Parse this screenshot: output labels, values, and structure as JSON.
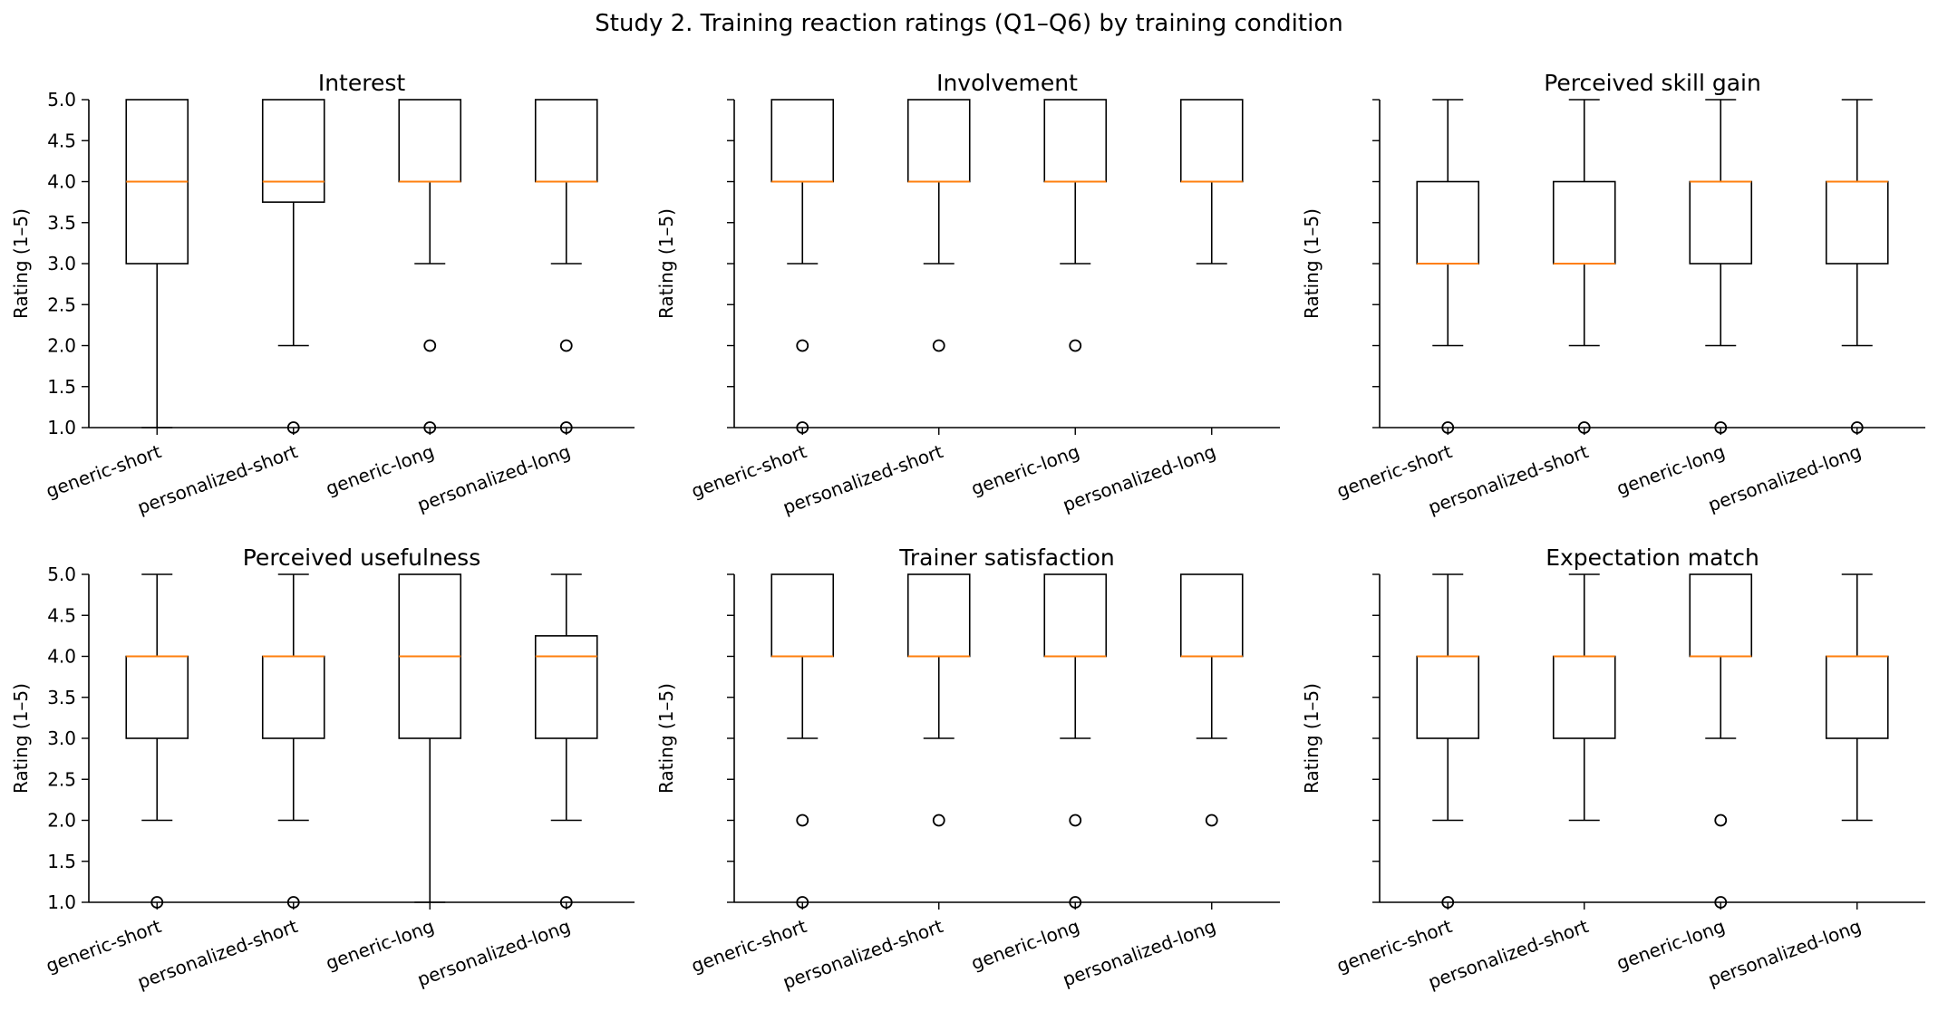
{
  "figure": {
    "title": "Study 2. Training reaction ratings (Q1–Q6) by training condition"
  },
  "chart_data": [
    {
      "type": "box",
      "title": "Interest",
      "ylabel": "Rating (1–5)",
      "xlabel": "",
      "ylim": [
        1.0,
        5.0
      ],
      "yticks": [
        "1.0",
        "1.5",
        "2.0",
        "2.5",
        "3.0",
        "3.5",
        "4.0",
        "4.5",
        "5.0"
      ],
      "categories": [
        "generic-short",
        "personalized-short",
        "generic-long",
        "personalized-long"
      ],
      "boxes": [
        {
          "whisker_low": 1.0,
          "q1": 3.0,
          "median": 4.0,
          "q3": 5.0,
          "whisker_high": 5.0,
          "outliers": []
        },
        {
          "whisker_low": 2.0,
          "q1": 3.75,
          "median": 4.0,
          "q3": 5.0,
          "whisker_high": 5.0,
          "outliers": [
            1.0
          ]
        },
        {
          "whisker_low": 3.0,
          "q1": 4.0,
          "median": 4.0,
          "q3": 5.0,
          "whisker_high": 5.0,
          "outliers": [
            2.0,
            1.0
          ]
        },
        {
          "whisker_low": 3.0,
          "q1": 4.0,
          "median": 4.0,
          "q3": 5.0,
          "whisker_high": 5.0,
          "outliers": [
            2.0,
            1.0
          ]
        }
      ]
    },
    {
      "type": "box",
      "title": "Involvement",
      "ylabel": "Rating (1–5)",
      "xlabel": "",
      "ylim": [
        1.0,
        5.0
      ],
      "yticks": [],
      "categories": [
        "generic-short",
        "personalized-short",
        "generic-long",
        "personalized-long"
      ],
      "boxes": [
        {
          "whisker_low": 3.0,
          "q1": 4.0,
          "median": 4.0,
          "q3": 5.0,
          "whisker_high": 5.0,
          "outliers": [
            2.0,
            1.0
          ]
        },
        {
          "whisker_low": 3.0,
          "q1": 4.0,
          "median": 4.0,
          "q3": 5.0,
          "whisker_high": 5.0,
          "outliers": [
            2.0
          ]
        },
        {
          "whisker_low": 3.0,
          "q1": 4.0,
          "median": 4.0,
          "q3": 5.0,
          "whisker_high": 5.0,
          "outliers": [
            2.0
          ]
        },
        {
          "whisker_low": 3.0,
          "q1": 4.0,
          "median": 4.0,
          "q3": 5.0,
          "whisker_high": 5.0,
          "outliers": []
        }
      ]
    },
    {
      "type": "box",
      "title": "Perceived skill gain",
      "ylabel": "Rating (1–5)",
      "xlabel": "",
      "ylim": [
        1.0,
        5.0
      ],
      "yticks": [],
      "categories": [
        "generic-short",
        "personalized-short",
        "generic-long",
        "personalized-long"
      ],
      "boxes": [
        {
          "whisker_low": 2.0,
          "q1": 3.0,
          "median": 3.0,
          "q3": 4.0,
          "whisker_high": 5.0,
          "outliers": [
            1.0
          ]
        },
        {
          "whisker_low": 2.0,
          "q1": 3.0,
          "median": 3.0,
          "q3": 4.0,
          "whisker_high": 5.0,
          "outliers": [
            1.0
          ]
        },
        {
          "whisker_low": 2.0,
          "q1": 3.0,
          "median": 4.0,
          "q3": 4.0,
          "whisker_high": 5.0,
          "outliers": [
            1.0
          ]
        },
        {
          "whisker_low": 2.0,
          "q1": 3.0,
          "median": 4.0,
          "q3": 4.0,
          "whisker_high": 5.0,
          "outliers": [
            1.0
          ]
        }
      ]
    },
    {
      "type": "box",
      "title": "Perceived usefulness",
      "ylabel": "Rating (1–5)",
      "xlabel": "",
      "ylim": [
        1.0,
        5.0
      ],
      "yticks": [
        "1.0",
        "1.5",
        "2.0",
        "2.5",
        "3.0",
        "3.5",
        "4.0",
        "4.5",
        "5.0"
      ],
      "categories": [
        "generic-short",
        "personalized-short",
        "generic-long",
        "personalized-long"
      ],
      "boxes": [
        {
          "whisker_low": 2.0,
          "q1": 3.0,
          "median": 4.0,
          "q3": 4.0,
          "whisker_high": 5.0,
          "outliers": [
            1.0
          ]
        },
        {
          "whisker_low": 2.0,
          "q1": 3.0,
          "median": 4.0,
          "q3": 4.0,
          "whisker_high": 5.0,
          "outliers": [
            1.0
          ]
        },
        {
          "whisker_low": 1.0,
          "q1": 3.0,
          "median": 4.0,
          "q3": 5.0,
          "whisker_high": 5.0,
          "outliers": []
        },
        {
          "whisker_low": 2.0,
          "q1": 3.0,
          "median": 4.0,
          "q3": 4.25,
          "whisker_high": 5.0,
          "outliers": [
            1.0
          ]
        }
      ]
    },
    {
      "type": "box",
      "title": "Trainer satisfaction",
      "ylabel": "Rating (1–5)",
      "xlabel": "",
      "ylim": [
        1.0,
        5.0
      ],
      "yticks": [],
      "categories": [
        "generic-short",
        "personalized-short",
        "generic-long",
        "personalized-long"
      ],
      "boxes": [
        {
          "whisker_low": 3.0,
          "q1": 4.0,
          "median": 4.0,
          "q3": 5.0,
          "whisker_high": 5.0,
          "outliers": [
            2.0,
            1.0
          ]
        },
        {
          "whisker_low": 3.0,
          "q1": 4.0,
          "median": 4.0,
          "q3": 5.0,
          "whisker_high": 5.0,
          "outliers": [
            2.0
          ]
        },
        {
          "whisker_low": 3.0,
          "q1": 4.0,
          "median": 4.0,
          "q3": 5.0,
          "whisker_high": 5.0,
          "outliers": [
            2.0,
            1.0
          ]
        },
        {
          "whisker_low": 3.0,
          "q1": 4.0,
          "median": 4.0,
          "q3": 5.0,
          "whisker_high": 5.0,
          "outliers": [
            2.0
          ]
        }
      ]
    },
    {
      "type": "box",
      "title": "Expectation match",
      "ylabel": "Rating (1–5)",
      "xlabel": "",
      "ylim": [
        1.0,
        5.0
      ],
      "yticks": [],
      "categories": [
        "generic-short",
        "personalized-short",
        "generic-long",
        "personalized-long"
      ],
      "boxes": [
        {
          "whisker_low": 2.0,
          "q1": 3.0,
          "median": 4.0,
          "q3": 4.0,
          "whisker_high": 5.0,
          "outliers": [
            1.0
          ]
        },
        {
          "whisker_low": 2.0,
          "q1": 3.0,
          "median": 4.0,
          "q3": 4.0,
          "whisker_high": 5.0,
          "outliers": []
        },
        {
          "whisker_low": 3.0,
          "q1": 4.0,
          "median": 4.0,
          "q3": 5.0,
          "whisker_high": 5.0,
          "outliers": [
            2.0,
            1.0
          ]
        },
        {
          "whisker_low": 2.0,
          "q1": 3.0,
          "median": 4.0,
          "q3": 4.0,
          "whisker_high": 5.0,
          "outliers": []
        }
      ]
    }
  ],
  "style": {
    "box_color": "#000000",
    "median_color": "#ff7f0e",
    "background": "#ffffff"
  }
}
